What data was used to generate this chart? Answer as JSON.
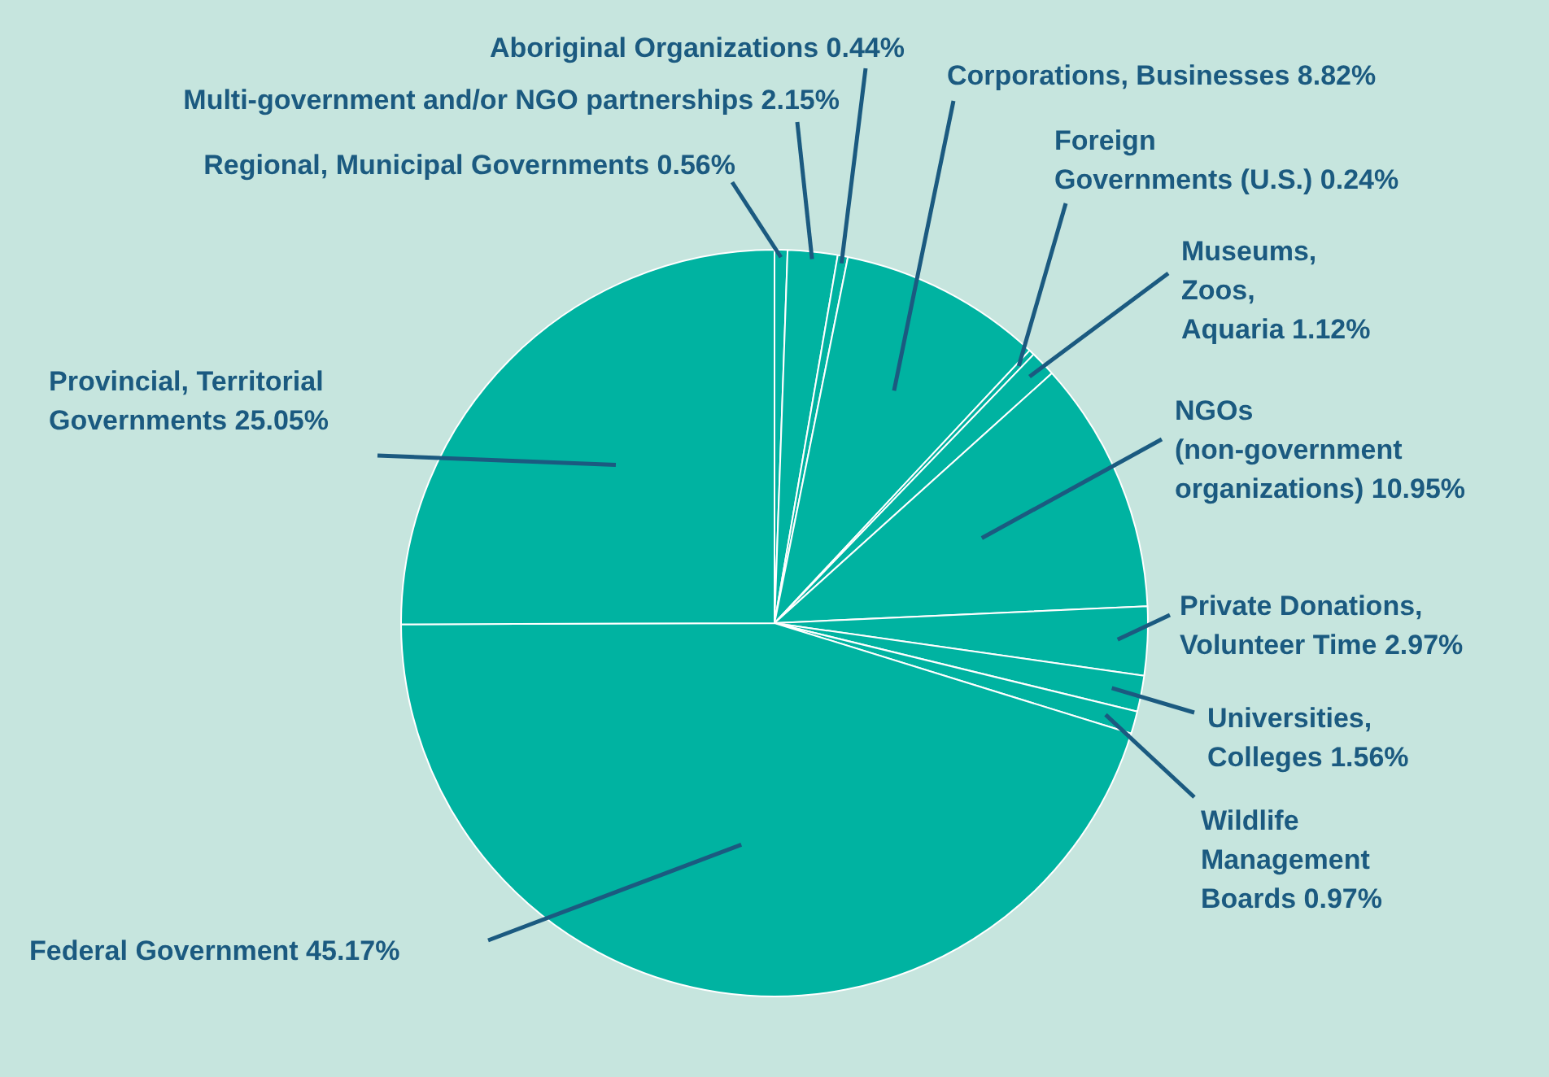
{
  "chart_data": {
    "type": "pie",
    "categories": [
      "Regional, Municipal Governments",
      "Multi-government and/or NGO partnerships",
      "Aboriginal Organizations",
      "Corporations, Businesses",
      "Foreign Governments (U.S.)",
      "Museums, Zoos, Aquaria",
      "NGOs (non-government organizations)",
      "Private Donations, Volunteer Time",
      "Universities, Colleges",
      "Wildlife Management Boards",
      "Federal Government",
      "Provincial, Territorial Governments"
    ],
    "values": [
      0.56,
      2.15,
      0.44,
      8.82,
      0.24,
      1.12,
      10.95,
      2.97,
      1.56,
      0.97,
      45.17,
      25.05
    ],
    "colors": [
      "#00b3a1",
      "#00b3a1",
      "#00b3a1",
      "#00b3a1",
      "#00b3a1",
      "#00b3a1",
      "#00b3a1",
      "#00b3a1",
      "#00b3a1",
      "#00b3a1",
      "#00b3a1",
      "#00b3a1"
    ],
    "value_labels": [
      "0.56%",
      "2.15%",
      "0.44%",
      "8.82%",
      "0.24%",
      "1.12%",
      "10.95%",
      "2.97%",
      "1.56%",
      "0.97%",
      "45.17%",
      "25.05%"
    ],
    "legend": false
  }
}
